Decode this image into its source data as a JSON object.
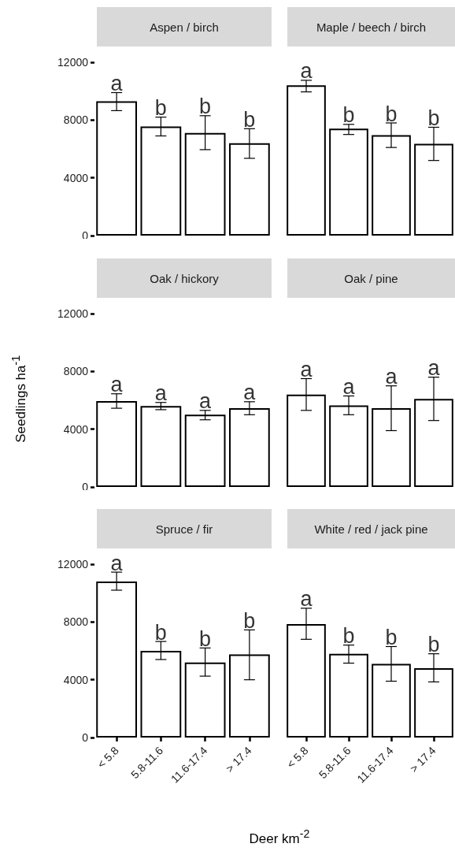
{
  "chart_data": [
    {
      "type": "bar",
      "title": "Aspen / birch",
      "categories": [
        "< 5.8",
        "5.8-11.6",
        "11.6-17.4",
        "> 17.4"
      ],
      "values": [
        9300,
        7550,
        7100,
        6400
      ],
      "errors": [
        [
          8650,
          9900
        ],
        [
          6900,
          8200
        ],
        [
          5950,
          8300
        ],
        [
          5350,
          7400
        ]
      ],
      "color": "#ffffff",
      "ylim": [
        0,
        12000
      ],
      "yticks": [
        0,
        4000,
        8000,
        12000
      ],
      "tick_labels": "y",
      "grid": false,
      "annotations": [
        {
          "text": "a",
          "x": "< 5.8",
          "y": 9900
        },
        {
          "text": "b",
          "x": "5.8-11.6",
          "y": 8200
        },
        {
          "text": "b",
          "x": "11.6-17.4",
          "y": 8300
        },
        {
          "text": "b",
          "x": "> 17.4",
          "y": 7400
        }
      ]
    },
    {
      "type": "bar",
      "title": "Maple / beech / birch",
      "categories": [
        "< 5.8",
        "5.8-11.6",
        "11.6-17.4",
        "> 17.4"
      ],
      "values": [
        10400,
        7400,
        6950,
        6350
      ],
      "errors": [
        [
          9950,
          10750
        ],
        [
          7000,
          7700
        ],
        [
          6100,
          7800
        ],
        [
          5200,
          7500
        ]
      ],
      "color": "#ffffff",
      "ylim": [
        0,
        12000
      ],
      "yticks": [
        0,
        4000,
        8000,
        12000
      ],
      "tick_labels": false,
      "grid": false,
      "annotations": [
        {
          "text": "a",
          "x": "< 5.8",
          "y": 10750
        },
        {
          "text": "b",
          "x": "5.8-11.6",
          "y": 7700
        },
        {
          "text": "b",
          "x": "11.6-17.4",
          "y": 7800
        },
        {
          "text": "b",
          "x": "> 17.4",
          "y": 7500
        }
      ]
    },
    {
      "type": "bar",
      "title": "Oak / hickory",
      "ylabel": "Seedlings ha$^{-1}$",
      "categories": [
        "< 5.8",
        "5.8-11.6",
        "11.6-17.4",
        "> 17.4"
      ],
      "values": [
        5950,
        5600,
        5000,
        5450
      ],
      "errors": [
        [
          5450,
          6450
        ],
        [
          5350,
          5850
        ],
        [
          4650,
          5300
        ],
        [
          5000,
          5900
        ]
      ],
      "color": "#ffffff",
      "ylim": [
        0,
        12000
      ],
      "yticks": [
        0,
        4000,
        8000,
        12000
      ],
      "tick_labels": "y",
      "grid": false,
      "annotations": [
        {
          "text": "a",
          "x": "< 5.8",
          "y": 6450
        },
        {
          "text": "a",
          "x": "5.8-11.6",
          "y": 5850
        },
        {
          "text": "a",
          "x": "11.6-17.4",
          "y": 5300
        },
        {
          "text": "a",
          "x": "> 17.4",
          "y": 5900
        }
      ]
    },
    {
      "type": "bar",
      "title": "Oak / pine",
      "categories": [
        "< 5.8",
        "5.8-11.6",
        "11.6-17.4",
        "> 17.4"
      ],
      "values": [
        6400,
        5650,
        5450,
        6100
      ],
      "errors": [
        [
          5300,
          7500
        ],
        [
          5000,
          6300
        ],
        [
          3900,
          7000
        ],
        [
          4600,
          7600
        ]
      ],
      "color": "#ffffff",
      "ylim": [
        0,
        12000
      ],
      "yticks": [
        0,
        4000,
        8000,
        12000
      ],
      "tick_labels": false,
      "grid": false,
      "annotations": [
        {
          "text": "a",
          "x": "< 5.8",
          "y": 7500
        },
        {
          "text": "a",
          "x": "5.8-11.6",
          "y": 6300
        },
        {
          "text": "a",
          "x": "11.6-17.4",
          "y": 7000
        },
        {
          "text": "a",
          "x": "> 17.4",
          "y": 7600
        }
      ]
    },
    {
      "type": "bar",
      "title": "Spruce / fir",
      "xlabel": "Deer km$^{-2}$",
      "categories": [
        "< 5.8",
        "5.8-11.6",
        "11.6-17.4",
        "> 17.4"
      ],
      "values": [
        10800,
        6000,
        5200,
        5750
      ],
      "errors": [
        [
          10200,
          11450
        ],
        [
          5400,
          6650
        ],
        [
          4250,
          6200
        ],
        [
          4000,
          7450
        ]
      ],
      "color": "#ffffff",
      "ylim": [
        0,
        12000
      ],
      "yticks": [
        0,
        4000,
        8000,
        12000
      ],
      "grid": false,
      "annotations": [
        {
          "text": "a",
          "x": "< 5.8",
          "y": 11450
        },
        {
          "text": "b",
          "x": "5.8-11.6",
          "y": 6650
        },
        {
          "text": "b",
          "x": "11.6-17.4",
          "y": 6200
        },
        {
          "text": "b",
          "x": "> 17.4",
          "y": 7450
        }
      ]
    },
    {
      "type": "bar",
      "title": "White / red / jack pine",
      "categories": [
        "< 5.8",
        "5.8-11.6",
        "11.6-17.4",
        "> 17.4"
      ],
      "values": [
        7850,
        5800,
        5100,
        4800
      ],
      "errors": [
        [
          6800,
          8950
        ],
        [
          5150,
          6400
        ],
        [
          3900,
          6300
        ],
        [
          3850,
          5800
        ]
      ],
      "color": "#ffffff",
      "ylim": [
        0,
        12000
      ],
      "yticks": [
        0,
        4000,
        8000,
        12000
      ],
      "tick_labels": "x",
      "grid": false,
      "annotations": [
        {
          "text": "a",
          "x": "< 5.8",
          "y": 8950
        },
        {
          "text": "b",
          "x": "5.8-11.6",
          "y": 6400
        },
        {
          "text": "b",
          "x": "11.6-17.4",
          "y": 6300
        },
        {
          "text": "b",
          "x": "> 17.4",
          "y": 5800
        }
      ]
    }
  ]
}
